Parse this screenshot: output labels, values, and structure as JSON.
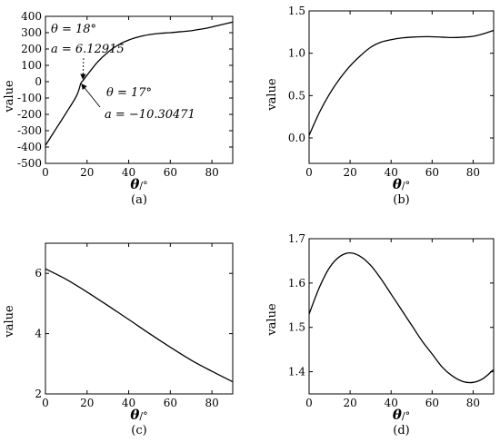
{
  "chart_data": [
    {
      "type": "line",
      "caption": "(a)",
      "xlabel_symbol": "θ",
      "xlabel_unit": "/°",
      "ylabel": "value",
      "xlim": [
        0,
        90
      ],
      "ylim": [
        -500,
        400
      ],
      "xticks": [
        0,
        20,
        40,
        60,
        80
      ],
      "yticks": [
        -500,
        -400,
        -300,
        -200,
        -100,
        0,
        100,
        200,
        300,
        400
      ],
      "x": [
        0,
        5,
        10,
        15,
        17,
        18,
        20,
        25,
        30,
        35,
        40,
        45,
        50,
        55,
        60,
        65,
        70,
        75,
        80,
        85,
        90
      ],
      "y": [
        -390,
        -290,
        -190,
        -85,
        -10.30471,
        6.12915,
        40,
        120,
        180,
        225,
        255,
        275,
        288,
        296,
        300,
        306,
        312,
        322,
        335,
        350,
        365
      ],
      "annotations": [
        {
          "theta_label": "θ = 18°",
          "a_label": "a = 6.12915",
          "point_x": 18,
          "point_y": 6.12915
        },
        {
          "theta_label": "θ = 17°",
          "a_label": "a = −10.30471",
          "point_x": 17,
          "point_y": -10.30471
        }
      ]
    },
    {
      "type": "line",
      "caption": "(b)",
      "xlabel_symbol": "θ",
      "xlabel_unit": "/°",
      "ylabel": "value",
      "xlim": [
        0,
        90
      ],
      "ylim": [
        -0.3,
        1.5
      ],
      "xticks": [
        0,
        20,
        40,
        60,
        80
      ],
      "yticks": [
        0.0,
        0.5,
        1.0,
        1.5
      ],
      "ytick_labels": [
        "0.0",
        "0.5",
        "1.0",
        "1.5"
      ],
      "x": [
        0,
        5,
        10,
        15,
        20,
        25,
        30,
        35,
        40,
        45,
        50,
        55,
        60,
        65,
        70,
        75,
        80,
        85,
        90
      ],
      "y": [
        0.03,
        0.3,
        0.52,
        0.7,
        0.85,
        0.97,
        1.07,
        1.13,
        1.16,
        1.18,
        1.19,
        1.195,
        1.195,
        1.19,
        1.185,
        1.19,
        1.2,
        1.23,
        1.27
      ]
    },
    {
      "type": "line",
      "caption": "(c)",
      "xlabel_symbol": "θ",
      "xlabel_unit": "/°",
      "ylabel": "value",
      "xlim": [
        0,
        90
      ],
      "ylim": [
        2,
        7
      ],
      "xticks": [
        0,
        20,
        40,
        60,
        80
      ],
      "yticks": [
        2,
        4,
        6
      ],
      "x": [
        0,
        10,
        20,
        30,
        40,
        50,
        60,
        70,
        80,
        90
      ],
      "y": [
        6.15,
        5.8,
        5.38,
        4.93,
        4.47,
        4.0,
        3.55,
        3.12,
        2.75,
        2.4
      ]
    },
    {
      "type": "line",
      "caption": "(d)",
      "xlabel_symbol": "θ",
      "xlabel_unit": "/°",
      "ylabel": "value",
      "xlim": [
        0,
        90
      ],
      "ylim": [
        1.35,
        1.7
      ],
      "xticks": [
        0,
        20,
        40,
        60,
        80
      ],
      "yticks": [
        1.4,
        1.5,
        1.6,
        1.7
      ],
      "ytick_labels": [
        "1.4",
        "1.5",
        "1.6",
        "1.7"
      ],
      "x": [
        0,
        5,
        10,
        15,
        20,
        25,
        30,
        35,
        40,
        45,
        50,
        55,
        60,
        65,
        70,
        75,
        80,
        85,
        90
      ],
      "y": [
        1.53,
        1.59,
        1.635,
        1.66,
        1.668,
        1.66,
        1.64,
        1.61,
        1.575,
        1.54,
        1.505,
        1.47,
        1.44,
        1.41,
        1.39,
        1.378,
        1.376,
        1.385,
        1.405
      ]
    }
  ]
}
